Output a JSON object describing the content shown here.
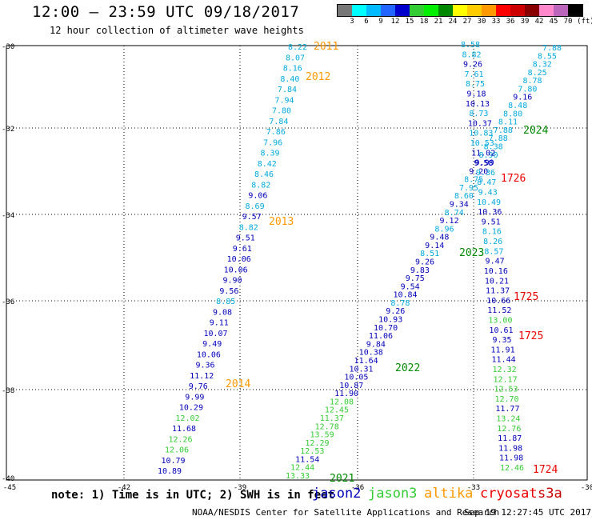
{
  "header": {
    "title": "12:00 – 23:59 UTC 09/18/2017",
    "subtitle": "12 hour collection of altimeter wave heights"
  },
  "color_scale": {
    "labels": [
      "3",
      "6",
      "9",
      "12",
      "15",
      "18",
      "21",
      "24",
      "27",
      "30",
      "33",
      "36",
      "39",
      "42",
      "45",
      "70"
    ],
    "unit": "(ft)",
    "colors": [
      "#777777",
      "#00ffff",
      "#00bbff",
      "#2266ff",
      "#0000cc",
      "#33cc33",
      "#00ee00",
      "#008800",
      "#ffff00",
      "#ffcc00",
      "#ff9900",
      "#ff0000",
      "#cc0000",
      "#880000",
      "#ff88cc",
      "#bb66bb",
      "#000000"
    ]
  },
  "axes": {
    "x_ticks": [
      "-45",
      "-42",
      "-39",
      "-36",
      "-33",
      "-30"
    ],
    "y_ticks": [
      "-30",
      "-32",
      "-34",
      "-36",
      "-38",
      "-40"
    ]
  },
  "satellite_colors": {
    "jason2": "#0000bb",
    "jason3": "#33cc33",
    "altika": "#ff9900",
    "cryosat": "#ee0000",
    "s3a": "#cc0000",
    "track_label": "#008800",
    "cyan": "#00aadd"
  },
  "track_labels": [
    {
      "text": "2011",
      "color": "altika"
    },
    {
      "text": "2012",
      "color": "altika"
    },
    {
      "text": "2013",
      "color": "altika"
    },
    {
      "text": "2014",
      "color": "altika"
    },
    {
      "text": "2024",
      "color": "track_label"
    },
    {
      "text": "1726",
      "color": "cryosat"
    },
    {
      "text": "2023",
      "color": "track_label"
    },
    {
      "text": "1725",
      "color": "cryosat"
    },
    {
      "text": "1725",
      "color": "cryosat"
    },
    {
      "text": "2022",
      "color": "track_label"
    },
    {
      "text": "2021",
      "color": "track_label"
    },
    {
      "text": "1724",
      "color": "cryosat"
    }
  ],
  "tracks": {
    "a": [
      "8.22",
      "8.07",
      "8.16",
      "8.40",
      "7.84",
      "7.94",
      "7.80",
      "7.84",
      "7.86",
      "7.96",
      "8.39",
      "8.42",
      "8.46",
      "8.82",
      "9.06",
      "8.69",
      "9.57",
      "8.82",
      "9.51",
      "9.61",
      "10.06",
      "10.06",
      "9.90",
      "9.56",
      "8.85",
      "9.08",
      "9.11",
      "10.07",
      "9.49",
      "10.06",
      "9.36",
      "11.12",
      "9.76",
      "9.99",
      "10.29",
      "12.02",
      "11.68",
      "12.26",
      "12.06",
      "10.79",
      "10.89"
    ],
    "b": [
      "13.33",
      "12.44",
      "11.54",
      "12.53",
      "12.29",
      "13.59",
      "12.78",
      "11.37",
      "12.45",
      "12.08",
      "11.90",
      "10.87",
      "10.05",
      "10.31",
      "11.64",
      "10.38",
      "9.84",
      "11.06",
      "10.70",
      "10.93",
      "9.26",
      "8.78",
      "10.84",
      "9.54",
      "9.75",
      "9.83",
      "9.26",
      "8.51",
      "9.14",
      "9.48",
      "8.96",
      "9.12",
      "8.74",
      "9.34",
      "8.60",
      "7.95",
      "8.75",
      "9.20",
      "9.58",
      "8.90",
      "8.38",
      "7.88",
      "7.88",
      "8.11",
      "8.80",
      "8.48",
      "9.16",
      "7.80",
      "8.78",
      "8.25",
      "8.32",
      "8.55",
      "7.88"
    ],
    "c": [
      "8.58",
      "8.82",
      "9.26",
      "7.61",
      "8.75",
      "9.18",
      "10.13",
      "8.73",
      "10.37",
      "10.83",
      "10.53",
      "11.02",
      "9.99",
      "9.36",
      "8.47",
      "9.43",
      "10.49",
      "10.36",
      "9.51",
      "8.16",
      "8.26",
      "8.57",
      "9.47",
      "10.16",
      "10.21",
      "11.37",
      "10.66",
      "11.52",
      "13.00",
      "10.61",
      "9.35",
      "11.91",
      "11.44",
      "12.32",
      "12.17",
      "12.53",
      "12.70",
      "11.77",
      "13.24",
      "12.76",
      "11.87",
      "11.98",
      "11.98",
      "12.46"
    ],
    "c_colors": [
      "cyan",
      "cyan",
      "jason2",
      "cyan",
      "cyan",
      "jason2",
      "jason2",
      "cyan",
      "jason2",
      "cyan",
      "cyan",
      "jason2",
      "jason2",
      "cyan",
      "cyan",
      "cyan",
      "cyan",
      "jason2",
      "jason2",
      "cyan",
      "cyan",
      "cyan",
      "jason2",
      "jason2",
      "jason2",
      "jason2",
      "jason2",
      "jason2",
      "jason3",
      "jason2",
      "jason2",
      "jason2",
      "jason2",
      "jason3",
      "jason3",
      "jason3",
      "jason3",
      "jason2",
      "jason3",
      "jason3",
      "jason2",
      "jason2",
      "jason2",
      "jason3"
    ]
  },
  "note": "note: 1) Time is in UTC; 2) SWH is in feet",
  "legend": [
    {
      "text": "jason2",
      "color": "jason2"
    },
    {
      "text": "jason3",
      "color": "jason3"
    },
    {
      "text": "altika",
      "color": "altika"
    },
    {
      "text": "cryosat",
      "color": "cryosat"
    },
    {
      "text": "s3a",
      "color": "s3a"
    }
  ],
  "footer": {
    "credit": "NOAA/NESDIS Center for Satellite Applications and Research",
    "timestamp": "Sep 19 12:27:45 UTC 2017"
  }
}
